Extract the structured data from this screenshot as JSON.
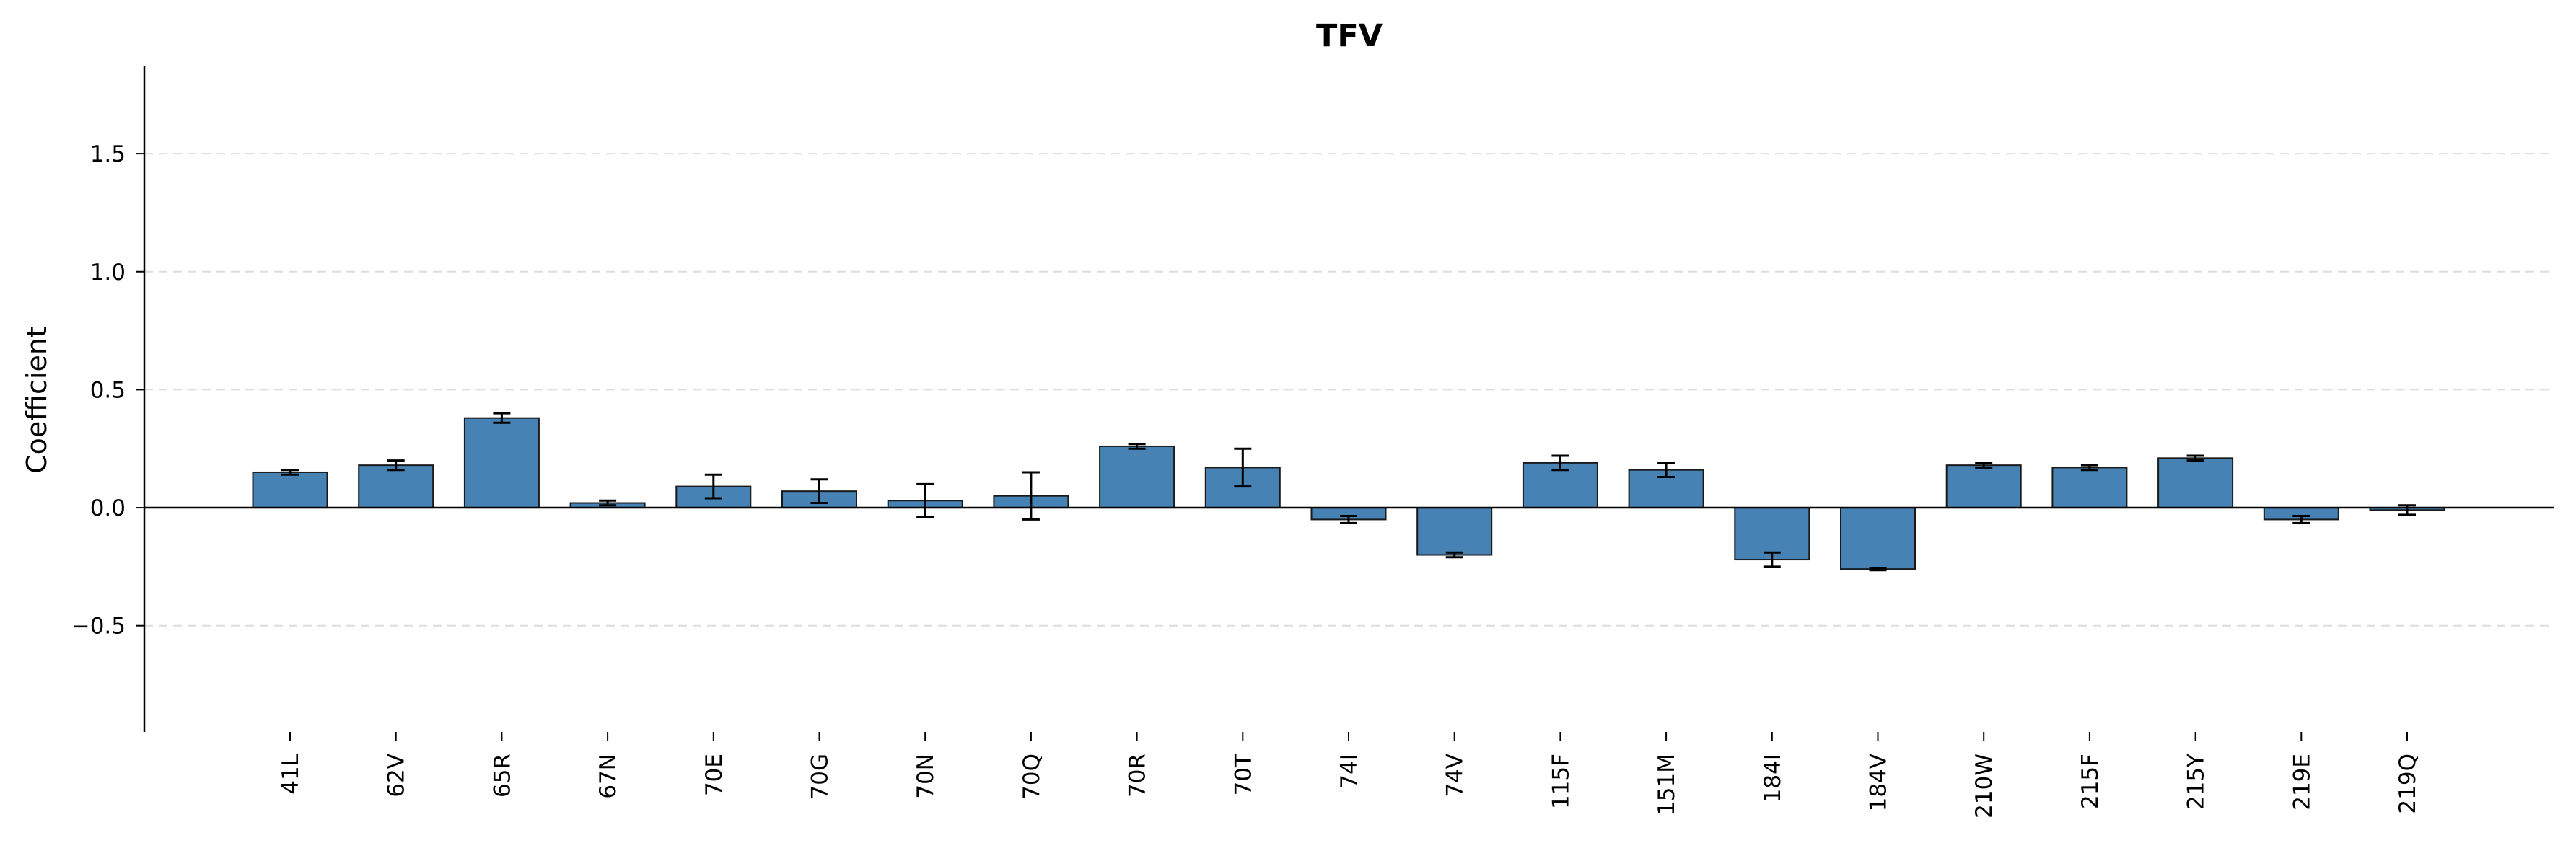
{
  "chart_data": {
    "type": "bar",
    "title": "TFV",
    "xlabel": "",
    "ylabel": "Coefficient",
    "ylim": [
      -0.95,
      1.87
    ],
    "yticks": [
      -0.5,
      0.0,
      0.5,
      1.0,
      1.5
    ],
    "ytick_labels": [
      "−0.5",
      "0.0",
      "0.5",
      "1.0",
      "1.5"
    ],
    "grid": "y-dashed",
    "legend": "none",
    "categories": [
      "41L",
      "62V",
      "65R",
      "67N",
      "70E",
      "70G",
      "70N",
      "70Q",
      "70R",
      "70T",
      "74I",
      "74V",
      "115F",
      "151M",
      "184I",
      "184V",
      "210W",
      "215F",
      "215Y",
      "219E",
      "219Q"
    ],
    "values": [
      0.15,
      0.18,
      0.38,
      0.02,
      0.09,
      0.07,
      0.03,
      0.05,
      0.26,
      0.17,
      -0.05,
      -0.2,
      0.19,
      0.16,
      -0.22,
      -0.26,
      0.18,
      0.17,
      0.21,
      -0.05,
      -0.01
    ],
    "errors": [
      0.01,
      0.02,
      0.02,
      0.01,
      0.05,
      0.05,
      0.07,
      0.1,
      0.01,
      0.08,
      0.015,
      0.01,
      0.03,
      0.03,
      0.03,
      0.005,
      0.01,
      0.01,
      0.01,
      0.015,
      0.02
    ],
    "colors": {
      "bar": "#4682b4",
      "bar_edge": "#1a1a1a",
      "grid": "#dddddd",
      "axis": "#000000"
    }
  }
}
